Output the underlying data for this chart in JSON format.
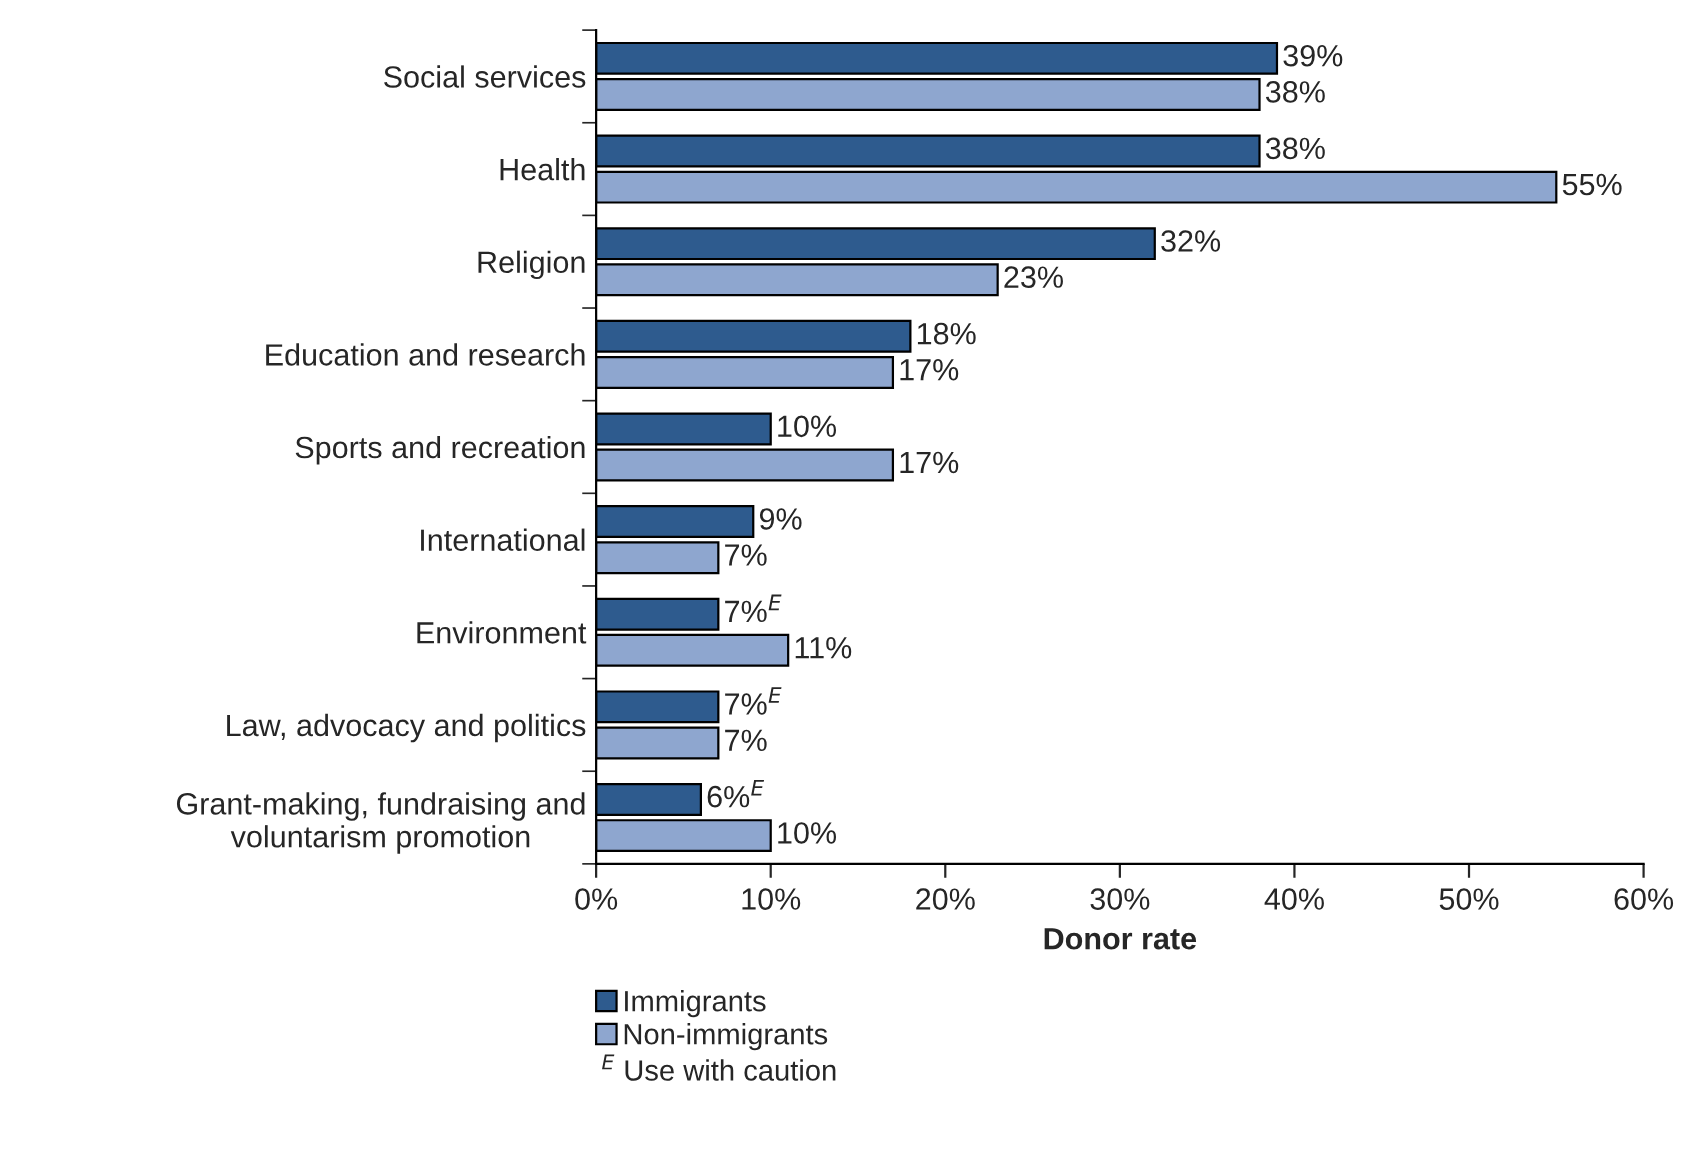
{
  "chart_data": {
    "type": "bar",
    "orientation": "horizontal",
    "xlabel": "Donor rate",
    "categories": [
      "Social services",
      "Health",
      "Religion",
      "Education and research",
      "Sports and recreation",
      "International",
      "Environment",
      "Law, advocacy and politics",
      "Grant-making, fundraising and\nvoluntarism promotion"
    ],
    "series": [
      {
        "name": "Immigrants",
        "color": "#2e5b8e",
        "values": [
          39,
          38,
          32,
          18,
          10,
          9,
          7,
          7,
          6
        ],
        "value_labels": [
          "39%",
          "38%",
          "32%",
          "18%",
          "10%",
          "9%",
          "7%$^{E}$",
          "7%$^{E}$",
          "6%$^{E}$"
        ]
      },
      {
        "name": "Non-immigrants",
        "color": "#8ea6cf",
        "values": [
          38,
          55,
          23,
          17,
          17,
          7,
          11,
          7,
          10
        ],
        "value_labels": [
          "38%",
          "55%",
          "23%",
          "17%",
          "17%",
          "7%",
          "11%",
          "7%",
          "10%"
        ]
      }
    ],
    "xlim": [
      0,
      60
    ],
    "xticks": [
      {
        "value": 0,
        "label": "0%"
      },
      {
        "value": 10,
        "label": "10%"
      },
      {
        "value": 20,
        "label": "20%"
      },
      {
        "value": 30,
        "label": "30%"
      },
      {
        "value": 40,
        "label": "40%"
      },
      {
        "value": 50,
        "label": "50%"
      },
      {
        "value": 60,
        "label": "60%"
      }
    ],
    "legend": "bottom",
    "grid": false,
    "annotations": [
      "$^{E}$ Use with caution"
    ]
  }
}
